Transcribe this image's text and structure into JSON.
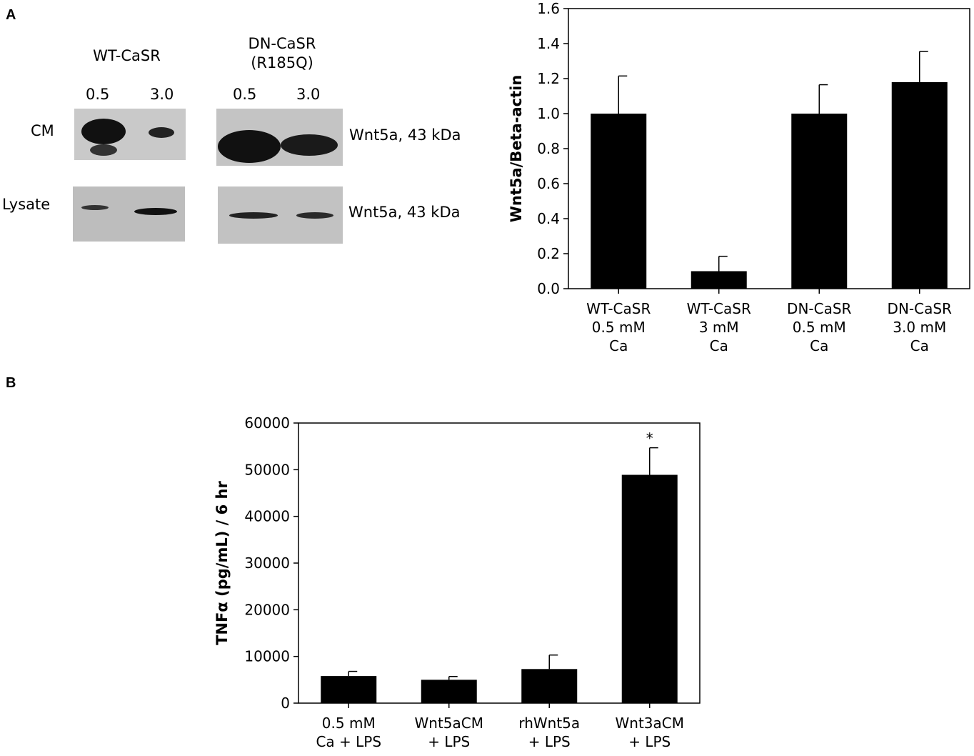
{
  "panels": {
    "a": "A",
    "b": "B"
  },
  "blot": {
    "groups": [
      {
        "title": [
          "WT-CaSR"
        ],
        "lanes": [
          "0.5",
          "3.0"
        ]
      },
      {
        "title": [
          "DN-CaSR",
          "(R185Q)"
        ],
        "lanes": [
          "0.5",
          "3.0"
        ]
      }
    ],
    "rows": [
      {
        "label": "CM",
        "band_label": "Wnt5a, 43 kDa"
      },
      {
        "label": "Lysate",
        "band_label": "Wnt5a, 43 kDa"
      }
    ]
  },
  "chart_data": [
    {
      "type": "bar",
      "categories": [
        [
          "WT-CaSR",
          "0.5 mM",
          "Ca"
        ],
        [
          "WT-CaSR",
          "3 mM",
          "Ca"
        ],
        [
          "DN-CaSR",
          "0.5 mM",
          "Ca"
        ],
        [
          "DN-CaSR",
          "3.0 mM",
          "Ca"
        ]
      ],
      "values": [
        1.0,
        0.1,
        1.0,
        1.18
      ],
      "errors": [
        0.215,
        0.085,
        0.165,
        0.175
      ],
      "ylabel": "Wnt5a/Beta-actin",
      "ylim": [
        0,
        1.6
      ],
      "yticks": [
        "0.0",
        "0.2",
        "0.4",
        "0.6",
        "0.8",
        "1.0",
        "1.2",
        "1.4",
        "1.6"
      ],
      "bar_color": "#000000",
      "grid": false
    },
    {
      "type": "bar",
      "categories": [
        [
          "0.5 mM",
          "Ca + LPS"
        ],
        [
          "Wnt5aCM",
          "+ LPS"
        ],
        [
          "rhWnt5a",
          "+ LPS"
        ],
        [
          "Wnt3aCM",
          "+ LPS"
        ]
      ],
      "values": [
        5800,
        5000,
        7300,
        48900
      ],
      "errors": [
        1000,
        700,
        3000,
        5800
      ],
      "annotations": [
        "",
        "",
        "",
        "*"
      ],
      "ylabel": "TNFα (pg/mL) / 6 hr",
      "ylim": [
        0,
        60000
      ],
      "yticks": [
        "0",
        "10000",
        "20000",
        "30000",
        "40000",
        "50000",
        "60000"
      ],
      "bar_color": "#000000",
      "grid": false
    }
  ]
}
